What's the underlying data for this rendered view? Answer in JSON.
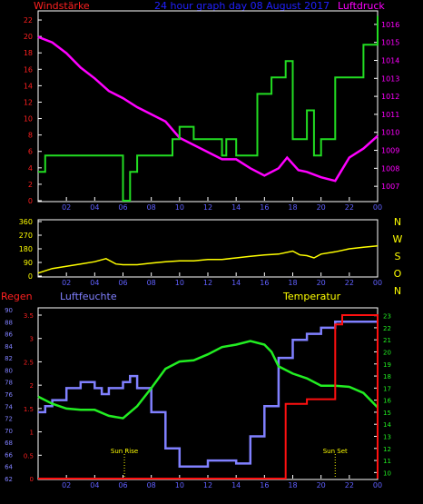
{
  "header": {
    "left_label": "Windstärke",
    "center_title": "24 hour graph day  08 August 2017",
    "right_label": "Luftdruck"
  },
  "colors": {
    "background": "#000000",
    "frame": "#ffffff",
    "wind_axis": "#ff2020",
    "pressure_axis": "#ff00ff",
    "wind_line": "#22dd22",
    "pressure_line": "#ff00ff",
    "direction_line": "#ffff00",
    "direction_axis": "#ffff00",
    "humidity_line": "#8080ff",
    "temperature_line": "#22ee22",
    "rain_line": "#ff1010",
    "rain_axis": "#ff2020",
    "title": "#2020ff",
    "x_labels": "#6060ff",
    "sun_labels": "#ffff00"
  },
  "x_ticks": [
    "02",
    "04",
    "06",
    "08",
    "10",
    "12",
    "14",
    "16",
    "18",
    "20",
    "22",
    "00"
  ],
  "panel3_labels": {
    "rain": "Regen",
    "humidity": "Luftfeuchte",
    "temperature": "Temperatur",
    "sun_rise": "Sun Rise",
    "sun_set": "Sun Set"
  },
  "chart_data": [
    {
      "type": "line",
      "title": "24 hour graph day  08 August 2017",
      "x_unit": "hours",
      "y_left": {
        "label": "Windstärke",
        "ticks": [
          "0",
          "2",
          "4",
          "6",
          "8",
          "10",
          "12",
          "14",
          "16",
          "18",
          "20",
          "22"
        ],
        "ylim": [
          0,
          23
        ]
      },
      "y_right": {
        "label": "Luftdruck",
        "ticks": [
          "1007",
          "1008",
          "1009",
          "1010",
          "1011",
          "1012",
          "1013",
          "1014",
          "1015",
          "1016"
        ],
        "ylim": [
          1006.2,
          1016.7
        ]
      },
      "series": [
        {
          "name": "Windstärke",
          "axis": "left",
          "step": true,
          "points": [
            [
              0,
              3.5
            ],
            [
              0.5,
              5.5
            ],
            [
              6,
              0
            ],
            [
              6.5,
              3.5
            ],
            [
              7,
              5.5
            ],
            [
              9.5,
              7.5
            ],
            [
              10,
              9
            ],
            [
              11,
              7.5
            ],
            [
              13,
              5.5
            ],
            [
              13.3,
              7.5
            ],
            [
              14,
              5.5
            ],
            [
              15.5,
              13
            ],
            [
              16.5,
              15
            ],
            [
              17.5,
              17
            ],
            [
              18,
              7.5
            ],
            [
              19,
              11
            ],
            [
              19.5,
              5.5
            ],
            [
              20,
              7.5
            ],
            [
              21,
              15
            ],
            [
              22,
              15
            ],
            [
              23,
              19
            ],
            [
              24,
              22.5
            ]
          ]
        },
        {
          "name": "Luftdruck",
          "axis": "right",
          "step": false,
          "points": [
            [
              0,
              1015.3
            ],
            [
              1,
              1015.0
            ],
            [
              2,
              1014.4
            ],
            [
              3,
              1013.6
            ],
            [
              4,
              1013.0
            ],
            [
              5,
              1012.3
            ],
            [
              6,
              1011.9
            ],
            [
              7,
              1011.4
            ],
            [
              8,
              1011.0
            ],
            [
              9,
              1010.6
            ],
            [
              10,
              1009.7
            ],
            [
              11,
              1009.3
            ],
            [
              12,
              1008.9
            ],
            [
              13,
              1008.5
            ],
            [
              14,
              1008.5
            ],
            [
              15,
              1008.0
            ],
            [
              16,
              1007.6
            ],
            [
              17,
              1008.0
            ],
            [
              17.6,
              1008.6
            ],
            [
              18.4,
              1007.9
            ],
            [
              19,
              1007.8
            ],
            [
              20,
              1007.5
            ],
            [
              21,
              1007.3
            ],
            [
              22,
              1008.6
            ],
            [
              23,
              1009.1
            ],
            [
              24,
              1009.8
            ]
          ]
        }
      ]
    },
    {
      "type": "line",
      "title": "",
      "y_left": {
        "ticks": [
          "0",
          "90",
          "180",
          "270",
          "360"
        ],
        "ylim": [
          0,
          360
        ]
      },
      "y_right": {
        "ticks": [
          "N",
          "W",
          "S",
          "O",
          "N"
        ]
      },
      "series": [
        {
          "name": "",
          "points": [
            [
              0,
              20
            ],
            [
              1,
              50
            ],
            [
              2,
              65
            ],
            [
              3,
              80
            ],
            [
              4,
              95
            ],
            [
              4.8,
              115
            ],
            [
              5.5,
              80
            ],
            [
              6,
              75
            ],
            [
              7,
              75
            ],
            [
              8,
              85
            ],
            [
              9,
              95
            ],
            [
              10,
              100
            ],
            [
              11,
              100
            ],
            [
              12,
              110
            ],
            [
              13,
              110
            ],
            [
              14,
              120
            ],
            [
              15,
              130
            ],
            [
              16,
              140
            ],
            [
              17,
              145
            ],
            [
              18,
              165
            ],
            [
              18.5,
              140
            ],
            [
              19,
              135
            ],
            [
              19.5,
              120
            ],
            [
              20,
              145
            ],
            [
              21,
              160
            ],
            [
              22,
              180
            ],
            [
              23,
              190
            ],
            [
              24,
              200
            ]
          ]
        }
      ]
    },
    {
      "type": "line",
      "title": "",
      "y_left_humidity": {
        "label": "Luftfeuchte",
        "ticks": [
          "62",
          "64",
          "66",
          "68",
          "70",
          "72",
          "74",
          "76",
          "78",
          "80",
          "82",
          "84",
          "86",
          "88",
          "90"
        ],
        "ylim": [
          62,
          90
        ]
      },
      "y_left_rain": {
        "label": "Regen",
        "ticks": [
          "0",
          "0.5",
          "1",
          "1.5",
          "2",
          "2.5",
          "3",
          "3.5"
        ],
        "ylim": [
          0,
          3.5
        ]
      },
      "y_right": {
        "label": "Temperatur",
        "ticks": [
          "10",
          "11",
          "12",
          "13",
          "14",
          "15",
          "16",
          "17",
          "18",
          "19",
          "20",
          "21",
          "22",
          "23"
        ],
        "ylim": [
          9.5,
          23.5
        ]
      },
      "annotations": [
        {
          "text": "Sun Rise",
          "x": 6.1
        },
        {
          "text": "Sun Set",
          "x": 21.0
        }
      ],
      "series": [
        {
          "name": "Luftfeuchte",
          "axis": "left_humidity",
          "step": true,
          "points": [
            [
              0,
              73
            ],
            [
              0.5,
              74
            ],
            [
              1,
              75
            ],
            [
              2,
              77
            ],
            [
              3,
              78
            ],
            [
              4,
              77
            ],
            [
              4.5,
              76
            ],
            [
              5,
              77
            ],
            [
              6,
              78
            ],
            [
              6.5,
              79
            ],
            [
              7,
              77
            ],
            [
              8,
              73
            ],
            [
              9,
              67
            ],
            [
              10,
              64
            ],
            [
              11,
              64
            ],
            [
              12,
              65
            ],
            [
              13,
              65
            ],
            [
              14,
              64.5
            ],
            [
              15,
              69
            ],
            [
              16,
              74
            ],
            [
              17,
              82
            ],
            [
              18,
              85
            ],
            [
              19,
              86
            ],
            [
              20,
              87
            ],
            [
              21,
              88
            ],
            [
              22,
              88
            ],
            [
              23,
              88
            ],
            [
              24,
              88
            ]
          ]
        },
        {
          "name": "Temperatur",
          "axis": "right",
          "step": false,
          "points": [
            [
              0,
              16.3
            ],
            [
              1,
              15.7
            ],
            [
              2,
              15.3
            ],
            [
              3,
              15.2
            ],
            [
              4,
              15.2
            ],
            [
              5,
              14.7
            ],
            [
              6,
              14.5
            ],
            [
              7,
              15.5
            ],
            [
              8,
              17
            ],
            [
              9,
              18.6
            ],
            [
              10,
              19.2
            ],
            [
              11,
              19.3
            ],
            [
              12,
              19.8
            ],
            [
              13,
              20.4
            ],
            [
              14,
              20.6
            ],
            [
              15,
              20.9
            ],
            [
              16,
              20.6
            ],
            [
              16.5,
              20.0
            ],
            [
              17,
              18.8
            ],
            [
              18,
              18.2
            ],
            [
              19,
              17.8
            ],
            [
              20,
              17.2
            ],
            [
              21,
              17.2
            ],
            [
              22,
              17.1
            ],
            [
              23,
              16.6
            ],
            [
              24,
              15.4
            ]
          ]
        },
        {
          "name": "Regen",
          "axis": "left_rain",
          "step": true,
          "points": [
            [
              0,
              0
            ],
            [
              17.5,
              0
            ],
            [
              17.5,
              1.6
            ],
            [
              19,
              1.7
            ],
            [
              21,
              1.7
            ],
            [
              21,
              3.3
            ],
            [
              21.5,
              3.5
            ],
            [
              23,
              3.5
            ],
            [
              24,
              3.5
            ],
            [
              24,
              0
            ]
          ]
        }
      ]
    }
  ]
}
